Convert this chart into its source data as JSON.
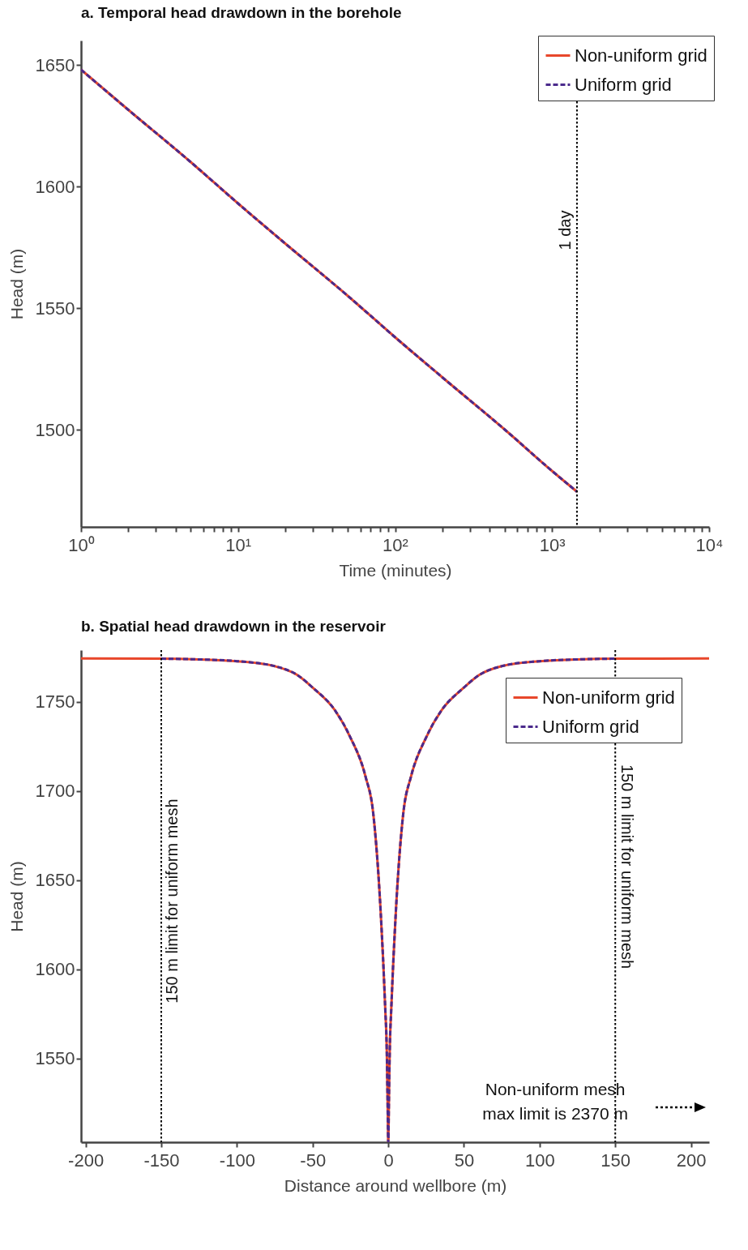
{
  "chart_data": [
    {
      "type": "line",
      "title": "a. Temporal head drawdown in the borehole",
      "xlabel": "Time (minutes)",
      "ylabel": "Head (m)",
      "log": "x",
      "legend": "top right",
      "xlim": [
        1,
        10000
      ],
      "xticks": [
        {
          "value": 1,
          "label": "10⁰"
        },
        {
          "value": 2,
          "label": null
        },
        {
          "value": 3,
          "label": null
        },
        {
          "value": 4,
          "label": null
        },
        {
          "value": 5,
          "label": null
        },
        {
          "value": 6,
          "label": null
        },
        {
          "value": 7,
          "label": null
        },
        {
          "value": 8,
          "label": null
        },
        {
          "value": 9,
          "label": null
        },
        {
          "value": 10,
          "label": "10¹"
        },
        {
          "value": 20,
          "label": null
        },
        {
          "value": 30,
          "label": null
        },
        {
          "value": 40,
          "label": null
        },
        {
          "value": 50,
          "label": null
        },
        {
          "value": 60,
          "label": null
        },
        {
          "value": 70,
          "label": null
        },
        {
          "value": 80,
          "label": null
        },
        {
          "value": 90,
          "label": null
        },
        {
          "value": 100,
          "label": "10²"
        },
        {
          "value": 200,
          "label": null
        },
        {
          "value": 300,
          "label": null
        },
        {
          "value": 400,
          "label": null
        },
        {
          "value": 500,
          "label": null
        },
        {
          "value": 600,
          "label": null
        },
        {
          "value": 700,
          "label": null
        },
        {
          "value": 800,
          "label": null
        },
        {
          "value": 900,
          "label": null
        },
        {
          "value": 1000,
          "label": "10³"
        },
        {
          "value": 2000,
          "label": null
        },
        {
          "value": 3000,
          "label": null
        },
        {
          "value": 4000,
          "label": null
        },
        {
          "value": 5000,
          "label": null
        },
        {
          "value": 6000,
          "label": null
        },
        {
          "value": 7000,
          "label": null
        },
        {
          "value": 8000,
          "label": null
        },
        {
          "value": 9000,
          "label": null
        },
        {
          "value": 10000,
          "label": "10⁴"
        }
      ],
      "ylim": [
        1460,
        1660
      ],
      "yticks": [
        1500,
        1550,
        1600,
        1650
      ],
      "ref_lines": [
        {
          "axis": "x",
          "value": 1440,
          "label": "1 day",
          "color": "#000000",
          "line_style": "dotted"
        }
      ],
      "series": [
        {
          "name": "Non-uniform grid",
          "color": "#e8472b",
          "line_style": "solid",
          "x": [
            1,
            2,
            5,
            10,
            20,
            50,
            100,
            200,
            500,
            1000,
            1440
          ],
          "values": [
            1648,
            1631.5,
            1610,
            1593,
            1576.5,
            1555,
            1538,
            1521.5,
            1500,
            1483,
            1474.5
          ]
        },
        {
          "name": "Uniform grid",
          "color": "#4b2a8c",
          "line_style": "dashed",
          "x": [
            1,
            2,
            5,
            10,
            20,
            50,
            100,
            200,
            500,
            1000,
            1440
          ],
          "values": [
            1648,
            1631.5,
            1610,
            1593,
            1576.5,
            1555,
            1538,
            1521.5,
            1500,
            1483,
            1474.5
          ]
        }
      ]
    },
    {
      "type": "line",
      "title": "b. Spatial head drawdown in the reservoir",
      "xlabel": "Distance around wellbore (m)",
      "ylabel": "Head (m)",
      "legend": "top right",
      "xlim": [
        -203,
        212
      ],
      "xticks": [
        -200,
        -150,
        -100,
        -50,
        0,
        50,
        100,
        150,
        200
      ],
      "ylim": [
        1503,
        1779
      ],
      "yticks": [
        1550,
        1600,
        1650,
        1700,
        1750
      ],
      "ref_lines": [
        {
          "axis": "x",
          "value": -150,
          "label": "150 m limit for uniform mesh",
          "color": "#000000",
          "line_style": "dotted"
        },
        {
          "axis": "x",
          "value": 150,
          "label": "150 m limit for uniform mesh",
          "color": "#000000",
          "line_style": "dotted"
        }
      ],
      "annotations": [
        "Non-uniform mesh\nmax limit is 2370 m"
      ],
      "series": [
        {
          "name": "Non-uniform grid",
          "color": "#e8472b",
          "line_style": "solid",
          "x": [
            -203,
            -150,
            -125,
            -100,
            -75,
            -60,
            -50,
            -35,
            -25,
            -15,
            -10,
            -5,
            -2,
            -1,
            -0.5,
            0,
            0.5,
            1,
            2,
            5,
            10,
            15,
            25,
            35,
            50,
            60,
            75,
            100,
            125,
            150,
            212
          ],
          "values": [
            1774.3,
            1774.2,
            1773.8,
            1772.8,
            1770,
            1765,
            1758,
            1745,
            1730,
            1708,
            1688,
            1632,
            1578,
            1555,
            1530,
            1503,
            1530,
            1555,
            1578,
            1632,
            1688,
            1708,
            1730,
            1745,
            1758,
            1765,
            1770,
            1772.8,
            1773.8,
            1774.2,
            1774.3
          ]
        },
        {
          "name": "Uniform grid",
          "color": "#4b2a8c",
          "line_style": "dashed",
          "x": [
            -150,
            -125,
            -100,
            -75,
            -60,
            -50,
            -35,
            -25,
            -15,
            -10,
            -5,
            -2,
            -1,
            -0.5,
            0,
            0.5,
            1,
            2,
            5,
            10,
            15,
            25,
            35,
            50,
            60,
            75,
            100,
            125,
            150
          ],
          "values": [
            1774.2,
            1773.8,
            1772.8,
            1770,
            1765,
            1758,
            1745,
            1730,
            1708,
            1688,
            1632,
            1578,
            1555,
            1530,
            1503,
            1530,
            1555,
            1578,
            1632,
            1688,
            1708,
            1730,
            1745,
            1758,
            1765,
            1770,
            1772.8,
            1773.8,
            1774.2
          ]
        }
      ]
    }
  ]
}
